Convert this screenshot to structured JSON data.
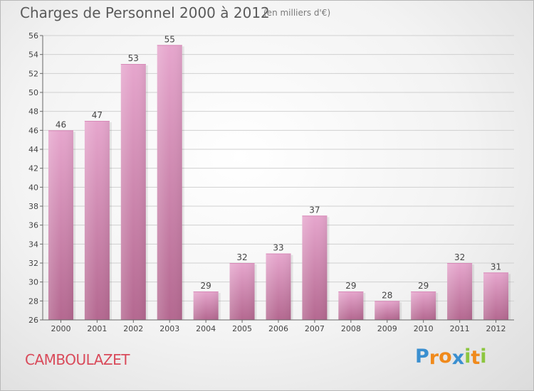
{
  "chart_data": {
    "type": "bar",
    "title": "Charges de Personnel 2000 à 2012",
    "subtitle": "(en milliers d'€)",
    "categories": [
      "2000",
      "2001",
      "2002",
      "2003",
      "2004",
      "2005",
      "2006",
      "2007",
      "2008",
      "2009",
      "2010",
      "2011",
      "2012"
    ],
    "values": [
      46,
      47,
      53,
      55,
      29,
      32,
      33,
      37,
      29,
      28,
      29,
      32,
      31
    ],
    "ylim": [
      26,
      56
    ],
    "yticks": [
      26,
      28,
      30,
      32,
      34,
      36,
      38,
      40,
      42,
      44,
      46,
      48,
      50,
      52,
      54,
      56
    ],
    "grid": true,
    "bar_color": "#c977a6"
  },
  "commune": "CAMBOULAZET",
  "logo": {
    "letters": [
      "P",
      "r",
      "o",
      "x",
      "i",
      "t",
      "i"
    ],
    "colors": [
      "#3a8fd0",
      "#f08a1c",
      "#f08a1c",
      "#3a8fd0",
      "#8cc63f",
      "#f08a1c",
      "#8cc63f"
    ]
  }
}
